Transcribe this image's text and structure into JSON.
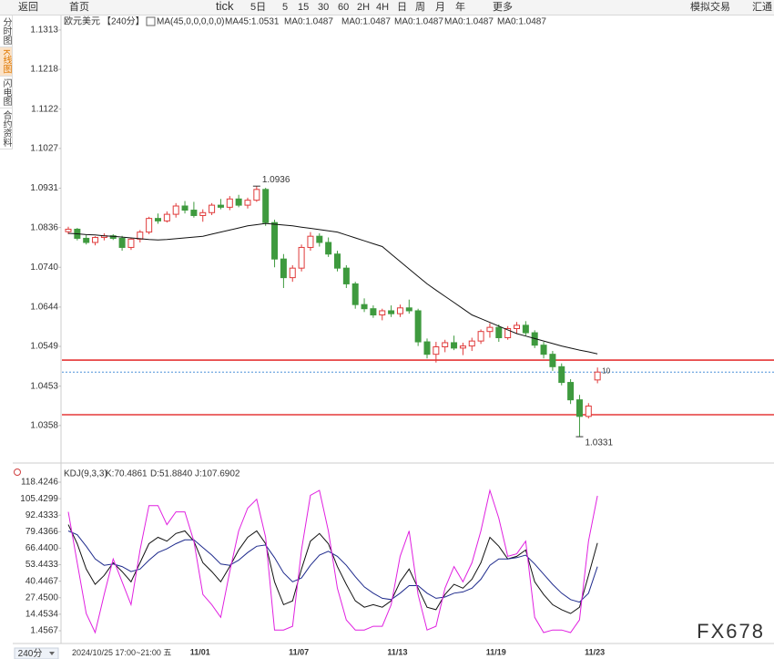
{
  "toolbar": [
    "返回",
    "首页",
    "tick",
    "5日",
    "5",
    "15",
    "30",
    "60",
    "2H",
    "4H",
    "日",
    "周",
    "月",
    "年",
    "更多",
    "模拟交易",
    "汇通"
  ],
  "sidebar": [
    "分时图",
    "K线图",
    "闪电图",
    "合约资料"
  ],
  "period_selector": "240分",
  "watermark": "FX678",
  "cursor_label": "2024/10/25 17:00~21:00 五",
  "chart_data": [
    {
      "type": "candlestick",
      "symbol": "欧元美元",
      "period": "【240分】",
      "indicator": "MA(45,0,0,0,0,0)",
      "legend": [
        {
          "text": "MA45:1.0531",
          "color": "#111111"
        },
        {
          "text": "MA0:1.0487",
          "color": "#22308a"
        },
        {
          "text": "MA0:1.0487",
          "color": "#e020e0"
        },
        {
          "text": "MA0:1.0487",
          "color": "#f0a030"
        },
        {
          "text": "MA0:1.0487",
          "color": "#9a9a9a"
        },
        {
          "text": "MA0:1.0487",
          "color": "#e04848"
        }
      ],
      "categories": [
        null,
        null,
        null,
        null,
        null,
        null,
        null,
        null,
        null,
        null,
        null,
        null,
        null,
        null,
        null,
        "11/01",
        null,
        null,
        null,
        null,
        null,
        null,
        null,
        null,
        null,
        null,
        "11/07",
        null,
        null,
        null,
        null,
        null,
        null,
        null,
        null,
        null,
        null,
        "11/13",
        null,
        null,
        null,
        null,
        null,
        null,
        null,
        null,
        null,
        null,
        "11/19",
        null,
        null,
        null,
        null,
        null,
        null,
        null,
        null,
        null,
        null,
        "11/23"
      ],
      "open": [
        1.0826,
        1.0832,
        1.081,
        1.08,
        1.0812,
        1.0816,
        1.081,
        1.0788,
        1.0808,
        1.0825,
        1.0858,
        1.0852,
        1.0868,
        1.0888,
        1.0878,
        1.0865,
        1.0872,
        1.089,
        1.0885,
        1.0905,
        1.089,
        1.0902,
        1.0928,
        1.0848,
        1.076,
        1.0715,
        1.0738,
        1.0788,
        1.0815,
        1.08,
        1.0772,
        1.0738,
        1.07,
        1.065,
        1.064,
        1.0625,
        1.0635,
        1.0628,
        1.0642,
        1.0635,
        1.056,
        1.053,
        1.0548,
        1.0558,
        1.0545,
        1.055,
        1.0562,
        1.0585,
        1.0595,
        1.057,
        1.0592,
        1.06,
        1.0582,
        1.0552,
        1.053,
        1.05,
        1.0462,
        1.042,
        1.038,
        1.0468
      ],
      "high": [
        1.0838,
        1.0835,
        1.0818,
        1.0815,
        1.0822,
        1.082,
        1.0816,
        1.0812,
        1.083,
        1.0862,
        1.087,
        1.0875,
        1.0895,
        1.09,
        1.0898,
        1.088,
        1.0895,
        1.0905,
        1.0912,
        1.0915,
        1.0908,
        1.0936,
        1.0932,
        1.0855,
        1.0772,
        1.0745,
        1.0795,
        1.0825,
        1.0822,
        1.0812,
        1.078,
        1.0745,
        1.0705,
        1.0665,
        1.0648,
        1.064,
        1.0648,
        1.065,
        1.0662,
        1.064,
        1.0568,
        1.056,
        1.0565,
        1.0575,
        1.0558,
        1.057,
        1.059,
        1.0605,
        1.0602,
        1.0598,
        1.0608,
        1.061,
        1.0588,
        1.056,
        1.0538,
        1.0508,
        1.047,
        1.0432,
        1.0412,
        1.0498
      ],
      "low": [
        1.082,
        1.0805,
        1.0795,
        1.0793,
        1.0805,
        1.0806,
        1.078,
        1.0782,
        1.08,
        1.082,
        1.0845,
        1.0848,
        1.086,
        1.087,
        1.086,
        1.085,
        1.0866,
        1.088,
        1.0878,
        1.0885,
        1.0882,
        1.0898,
        1.084,
        1.074,
        1.069,
        1.0705,
        1.073,
        1.078,
        1.079,
        1.0765,
        1.073,
        1.069,
        1.064,
        1.0632,
        1.0618,
        1.0612,
        1.062,
        1.062,
        1.0628,
        1.055,
        1.052,
        1.051,
        1.0535,
        1.054,
        1.0528,
        1.0538,
        1.0555,
        1.057,
        1.056,
        1.0565,
        1.058,
        1.0575,
        1.0545,
        1.052,
        1.049,
        1.0455,
        1.041,
        1.0331,
        1.0375,
        1.046
      ],
      "close": [
        1.0832,
        1.081,
        1.08,
        1.0812,
        1.0816,
        1.081,
        1.0788,
        1.0808,
        1.0825,
        1.0858,
        1.0852,
        1.0868,
        1.0888,
        1.0878,
        1.0865,
        1.0872,
        1.089,
        1.0885,
        1.0905,
        1.089,
        1.0902,
        1.0928,
        1.0848,
        1.076,
        1.0715,
        1.0738,
        1.0788,
        1.0815,
        1.08,
        1.0772,
        1.0738,
        1.07,
        1.065,
        1.064,
        1.0625,
        1.0635,
        1.0628,
        1.0642,
        1.0635,
        1.056,
        1.053,
        1.0548,
        1.0558,
        1.0545,
        1.055,
        1.0562,
        1.0585,
        1.0595,
        1.057,
        1.0592,
        1.06,
        1.0582,
        1.0552,
        1.053,
        1.05,
        1.0462,
        1.042,
        1.038,
        1.0405,
        1.0487
      ],
      "up_color": "#e03a3a",
      "down_color": "#3e9a3e",
      "ma": {
        "color": "#111111",
        "values": [
          1.0822,
          1.0821,
          1.0819,
          1.0818,
          1.0816,
          1.0815,
          1.0813,
          1.0811,
          1.0809,
          1.0807,
          1.0806,
          1.0807,
          1.0809,
          1.0811,
          1.0813,
          1.0815,
          1.082,
          1.0825,
          1.083,
          1.0835,
          1.084,
          1.0843,
          1.0846,
          1.0844,
          1.0842,
          1.084,
          1.0837,
          1.0834,
          1.0831,
          1.0828,
          1.0825,
          1.0818,
          1.0811,
          1.0804,
          1.0797,
          1.079,
          1.0772,
          1.0754,
          1.0736,
          1.0718,
          1.07,
          1.0685,
          1.067,
          1.0655,
          1.064,
          1.0625,
          1.0616,
          1.0607,
          1.0598,
          1.0589,
          1.058,
          1.0574,
          1.0568,
          1.0562,
          1.0556,
          1.055,
          1.0545,
          1.054,
          1.0536,
          1.0531
        ]
      },
      "high_label": 1.0936,
      "low_label": 1.0331,
      "note": "10",
      "hlines": [
        {
          "value": 1.0516,
          "color": "#e01010"
        },
        {
          "value": 1.0384,
          "color": "#e01010"
        }
      ],
      "price_line": {
        "value": 1.0487,
        "color": "#4a90d9"
      },
      "ylim": [
        1.0274,
        1.1348
      ],
      "yticks": [
        1.1313,
        1.1218,
        1.1122,
        1.1027,
        1.0931,
        1.0836,
        {
          "value": 1.074,
          "label": "1.0740"
        },
        1.0644,
        1.0549,
        1.0453,
        1.0358
      ],
      "grid": false
    },
    {
      "type": "line",
      "title": "KDJ(9,3,3)",
      "series": [
        {
          "name": "K:70.4861",
          "color": "#111111",
          "values": [
            85,
            70,
            50,
            38,
            45,
            55,
            48,
            40,
            55,
            70,
            75,
            72,
            78,
            80,
            72,
            55,
            48,
            40,
            52,
            65,
            75,
            80,
            70,
            40,
            22,
            25,
            50,
            72,
            78,
            70,
            52,
            38,
            25,
            20,
            22,
            20,
            25,
            40,
            50,
            35,
            20,
            18,
            30,
            38,
            35,
            42,
            55,
            75,
            68,
            58,
            60,
            65,
            40,
            30,
            22,
            18,
            15,
            20,
            45,
            70.4861
          ]
        },
        {
          "name": "D:51.8840",
          "color": "#1e2a8c",
          "values": [
            80,
            77,
            68,
            58,
            53,
            54,
            52,
            48,
            50,
            57,
            63,
            66,
            70,
            73,
            73,
            67,
            61,
            54,
            53,
            57,
            63,
            68,
            69,
            59,
            47,
            40,
            43,
            53,
            61,
            64,
            60,
            53,
            44,
            36,
            31,
            27,
            26,
            31,
            37,
            37,
            31,
            27,
            28,
            31,
            32,
            35,
            42,
            53,
            58,
            58,
            59,
            61,
            54,
            46,
            38,
            31,
            26,
            24,
            31,
            51.884
          ]
        },
        {
          "name": "J:107.6902",
          "color": "#e020e0",
          "values": [
            95,
            55,
            15,
            0,
            30,
            58,
            40,
            22,
            65,
            100,
            100,
            85,
            95,
            95,
            72,
            30,
            22,
            12,
            48,
            80,
            98,
            105,
            75,
            2,
            2,
            5,
            65,
            108,
            112,
            80,
            35,
            10,
            2,
            2,
            5,
            5,
            22,
            60,
            80,
            30,
            2,
            5,
            35,
            52,
            40,
            55,
            80,
            112,
            90,
            60,
            62,
            72,
            12,
            0,
            2,
            2,
            0,
            10,
            72,
            107.6902
          ]
        }
      ],
      "ylim": [
        -7.88,
        130.63
      ],
      "yticks": [
        118.4246,
        105.4299,
        92.4333,
        79.4366,
        {
          "value": 66.44,
          "label": "66.4400"
        },
        53.4433,
        40.4467,
        {
          "value": 27.45,
          "label": "27.4500"
        },
        14.4534,
        1.4567
      ],
      "grid": false
    }
  ]
}
